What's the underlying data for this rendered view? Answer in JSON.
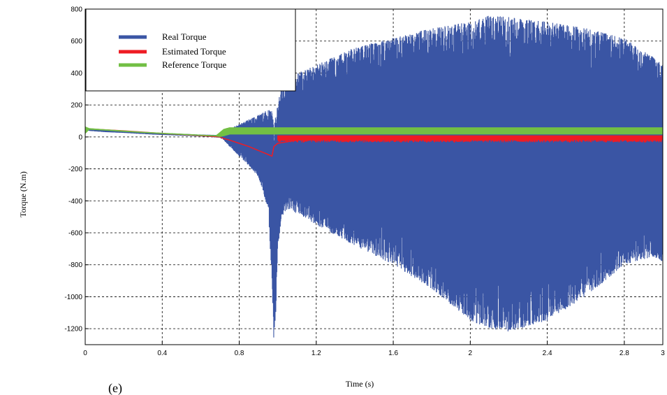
{
  "panel_label": "(e)",
  "chart_data": {
    "type": "line",
    "xlabel": "Time (s)",
    "ylabel": "Torque  (N.m)",
    "xlim": [
      0,
      3
    ],
    "ylim": [
      -1300,
      800
    ],
    "x_ticks": [
      0,
      0.4,
      0.8,
      1.2,
      1.6,
      2,
      2.4,
      2.8,
      3
    ],
    "x_tick_labels": [
      "0",
      "0.4",
      "0.8",
      "1.2",
      "1.6",
      "2",
      "2.4",
      "2.8",
      "3"
    ],
    "y_ticks": [
      800,
      600,
      400,
      200,
      0,
      -200,
      -400,
      -600,
      -800,
      -1000,
      -1200
    ],
    "y_tick_labels": [
      "800",
      "600",
      "400",
      "200",
      "0",
      "-200",
      "-400",
      "-600",
      "-800",
      "-1000",
      "-1200"
    ],
    "grid": true,
    "legend_position": "top-left",
    "series": [
      {
        "name": "Real Torque",
        "color": "#3a55a4",
        "style": "band",
        "x": [
          0,
          0.05,
          0.1,
          0.2,
          0.3,
          0.4,
          0.5,
          0.6,
          0.7,
          0.72,
          0.75,
          0.8,
          0.85,
          0.9,
          0.95,
          0.97,
          0.98,
          0.99,
          1.0,
          1.02,
          1.05,
          1.1,
          1.2,
          1.4,
          1.6,
          1.8,
          2.0,
          2.1,
          2.2,
          2.4,
          2.6,
          2.8,
          2.95,
          3.0
        ],
        "upper": [
          55,
          50,
          45,
          38,
          30,
          25,
          20,
          15,
          12,
          30,
          50,
          80,
          110,
          140,
          170,
          160,
          80,
          140,
          220,
          300,
          380,
          400,
          450,
          560,
          620,
          680,
          720,
          760,
          750,
          720,
          680,
          620,
          500,
          450
        ],
        "lower": [
          40,
          35,
          30,
          25,
          18,
          12,
          8,
          3,
          -5,
          -20,
          -60,
          -120,
          -180,
          -250,
          -450,
          -900,
          -1290,
          -1100,
          -700,
          -500,
          -450,
          -480,
          -550,
          -680,
          -800,
          -950,
          -1150,
          -1200,
          -1220,
          -1150,
          -1000,
          -800,
          -750,
          -780
        ]
      },
      {
        "name": "Estimated Torque",
        "color": "#ee1c24",
        "style": "line",
        "x": [
          0,
          0.1,
          0.2,
          0.3,
          0.4,
          0.5,
          0.6,
          0.7,
          0.72,
          0.75,
          0.8,
          0.85,
          0.9,
          0.95,
          0.97,
          0.98,
          1.0,
          1.05,
          1.1,
          1.3,
          1.6,
          2.0,
          2.4,
          2.8,
          3.0
        ],
        "y": [
          52,
          45,
          38,
          30,
          22,
          15,
          8,
          0,
          -10,
          -20,
          -40,
          -60,
          -85,
          -110,
          -120,
          -60,
          -40,
          -30,
          -20,
          -15,
          -15,
          -15,
          -15,
          -15,
          -15
        ],
        "band_after": 1.0,
        "band_upper": 10,
        "band_lower": -35
      },
      {
        "name": "Reference Torque",
        "color": "#72bf44",
        "style": "band",
        "x": [
          0,
          0.02,
          0.1,
          0.2,
          0.3,
          0.4,
          0.5,
          0.6,
          0.68,
          0.7,
          0.72,
          0.75,
          3.0
        ],
        "upper": [
          65,
          55,
          48,
          40,
          32,
          26,
          20,
          14,
          10,
          30,
          50,
          60,
          60
        ],
        "lower": [
          20,
          45,
          40,
          32,
          25,
          19,
          13,
          7,
          3,
          0,
          5,
          15,
          15
        ]
      }
    ]
  }
}
